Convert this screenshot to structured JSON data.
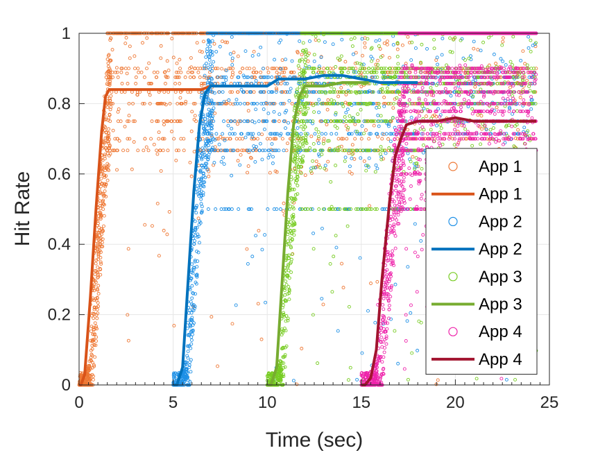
{
  "chart_data": {
    "type": "scatter",
    "title": "",
    "xlabel": "Time (sec)",
    "ylabel": "Hit Rate",
    "xlim": [
      0,
      25
    ],
    "ylim": [
      0,
      1
    ],
    "xticks": [
      "0",
      "5",
      "10",
      "15",
      "20",
      "25"
    ],
    "yticks": [
      "0",
      "0.2",
      "0.4",
      "0.6",
      "0.8",
      "1"
    ],
    "grid": true,
    "legend_position": "right",
    "series": [
      {
        "name": "App 1",
        "kind": "scatter",
        "color": "#EE7733",
        "start": 0,
        "end": 24.3,
        "ramp_end": 1.4,
        "steady": 0.84,
        "bands": [
          0.667,
          0.7,
          0.75,
          0.8,
          0.833,
          0.857,
          0.875,
          0.889,
          0.9,
          1.0
        ],
        "density": 1.0
      },
      {
        "name": "App 1",
        "kind": "line",
        "color": "#D95319",
        "points": [
          [
            0,
            0
          ],
          [
            0.1,
            0
          ],
          [
            0.3,
            0.03
          ],
          [
            0.6,
            0.25
          ],
          [
            0.9,
            0.5
          ],
          [
            1.2,
            0.72
          ],
          [
            1.4,
            0.82
          ],
          [
            1.6,
            0.84
          ],
          [
            3,
            0.84
          ],
          [
            5,
            0.84
          ],
          [
            6.5,
            0.84
          ],
          [
            7,
            0.85
          ]
        ]
      },
      {
        "name": "App 2",
        "kind": "scatter",
        "color": "#1E90E6",
        "start": 5,
        "end": 24.3,
        "ramp_end": 6.8,
        "steady": 0.86,
        "bands": [
          0.5,
          0.667,
          0.714,
          0.75,
          0.8,
          0.833,
          0.857,
          0.875,
          1.0
        ],
        "density": 0.9
      },
      {
        "name": "App 2",
        "kind": "line",
        "color": "#0072BD",
        "points": [
          [
            5,
            0
          ],
          [
            5.2,
            0
          ],
          [
            5.5,
            0.05
          ],
          [
            5.8,
            0.3
          ],
          [
            6.1,
            0.55
          ],
          [
            6.4,
            0.74
          ],
          [
            6.7,
            0.83
          ],
          [
            7,
            0.85
          ],
          [
            8,
            0.85
          ],
          [
            9,
            0.85
          ],
          [
            10,
            0.85
          ],
          [
            10.6,
            0.87
          ],
          [
            11,
            0.87
          ],
          [
            12,
            0.87
          ],
          [
            13,
            0.88
          ],
          [
            14,
            0.88
          ],
          [
            15,
            0.87
          ],
          [
            16,
            0.86
          ],
          [
            17,
            0.86
          ],
          [
            18,
            0.86
          ]
        ]
      },
      {
        "name": "App 3",
        "kind": "scatter",
        "color": "#77CC22",
        "start": 10,
        "end": 24.3,
        "ramp_end": 11.8,
        "steady": 0.85,
        "bands": [
          0.5,
          0.667,
          0.75,
          0.8,
          0.833,
          0.857,
          0.875,
          0.889,
          0.9,
          1.0
        ],
        "density": 0.9
      },
      {
        "name": "App 3",
        "kind": "line",
        "color": "#77AC30",
        "points": [
          [
            10,
            0
          ],
          [
            10.2,
            0
          ],
          [
            10.5,
            0.05
          ],
          [
            10.8,
            0.3
          ],
          [
            11.1,
            0.55
          ],
          [
            11.4,
            0.74
          ],
          [
            11.7,
            0.82
          ],
          [
            12,
            0.85
          ],
          [
            13,
            0.85
          ],
          [
            14,
            0.86
          ],
          [
            15,
            0.86
          ],
          [
            15.4,
            0.86
          ]
        ]
      },
      {
        "name": "App 4",
        "kind": "scatter",
        "color": "#EE22AA",
        "start": 15,
        "end": 24.3,
        "ramp_end": 17.0,
        "steady": 0.76,
        "bands": [
          0.5,
          0.6,
          0.667,
          0.7,
          0.714,
          0.75,
          0.778,
          0.8,
          0.833,
          0.857,
          0.875,
          0.889,
          0.9,
          1.0
        ],
        "density": 1.0
      },
      {
        "name": "App 4",
        "kind": "line",
        "color": "#A2142F",
        "points": [
          [
            15,
            0
          ],
          [
            15.2,
            0
          ],
          [
            15.5,
            0.02
          ],
          [
            15.8,
            0.1
          ],
          [
            16.1,
            0.3
          ],
          [
            16.5,
            0.52
          ],
          [
            16.8,
            0.65
          ],
          [
            17.1,
            0.7
          ],
          [
            17.4,
            0.74
          ],
          [
            18,
            0.75
          ],
          [
            19,
            0.75
          ],
          [
            20,
            0.76
          ],
          [
            21,
            0.75
          ],
          [
            22,
            0.75
          ],
          [
            23,
            0.75
          ],
          [
            24.3,
            0.75
          ]
        ]
      }
    ]
  }
}
